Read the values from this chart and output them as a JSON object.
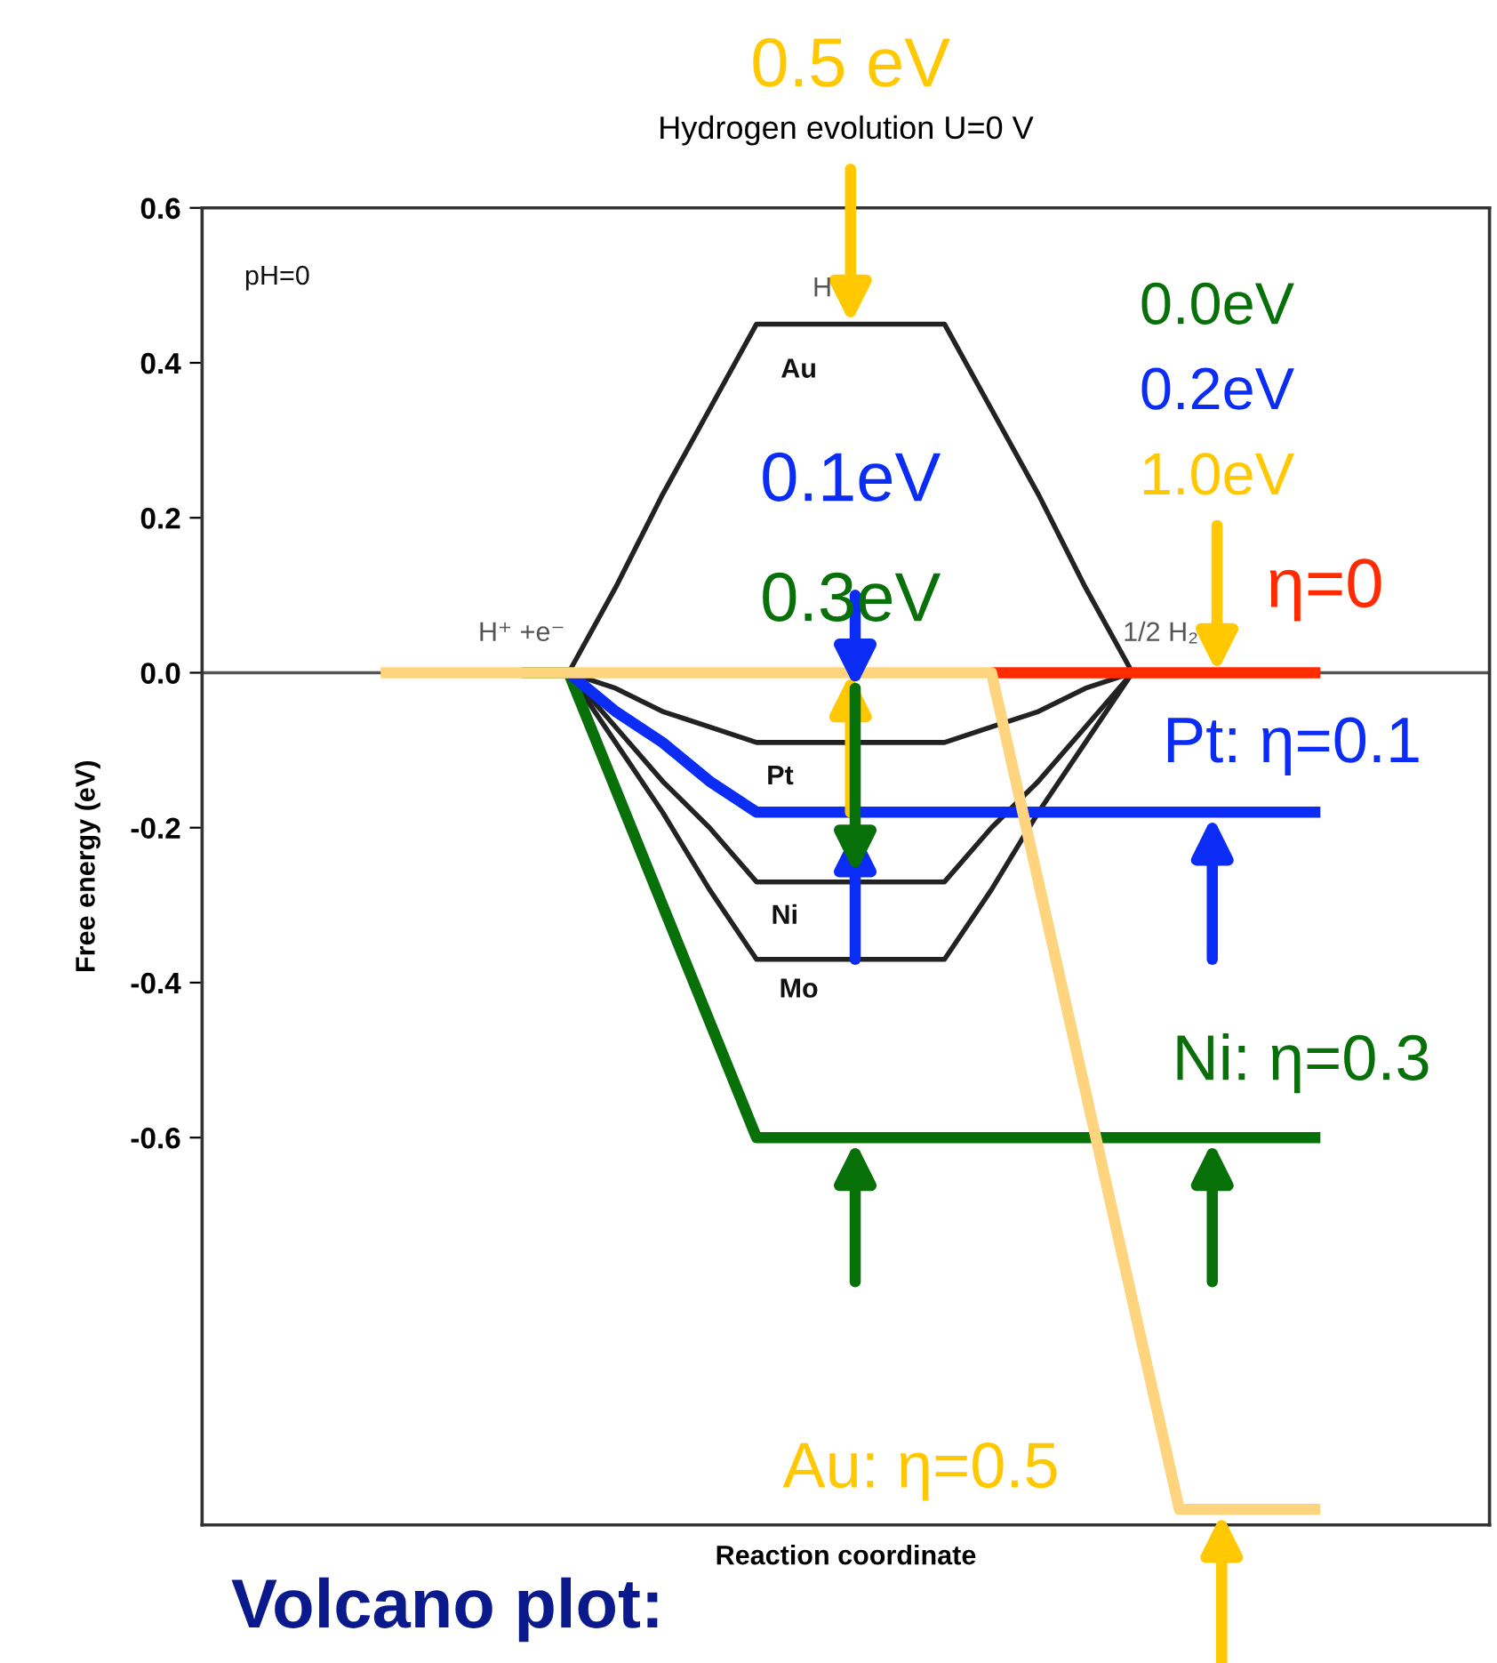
{
  "chart_data": {
    "type": "line",
    "title": "Hydrogen evolution U=0 V",
    "xlabel": "Reaction coordinate",
    "ylabel": "Free energy (eV)",
    "tick_labels": "y",
    "categories": [
      null,
      null,
      null,
      null,
      null,
      null,
      null,
      null,
      null,
      null,
      null,
      null,
      null,
      null,
      null,
      null,
      null,
      null,
      null,
      null,
      null
    ],
    "ylim": [
      -1.1,
      0.6
    ],
    "yticks": [
      -0.6,
      -0.4,
      -0.2,
      {
        "value": 0,
        "label": "0.0"
      },
      0.2,
      0.4,
      0.6
    ],
    "ref_lines": [
      {
        "axis": "y",
        "value": 0,
        "label": null,
        "color": "#555555"
      }
    ],
    "series": [
      {
        "color": "#222222",
        "values": [
          null,
          null,
          null,
          null,
          0,
          0.11,
          0.23,
          0.34,
          0.45,
          0.45,
          0.45,
          0.45,
          0.45,
          0.34,
          0.23,
          0.11,
          0,
          null,
          null,
          null,
          null
        ]
      },
      {
        "color": "#222222",
        "values": [
          null,
          null,
          null,
          null,
          0,
          -0.02,
          -0.05,
          -0.07,
          -0.09,
          -0.09,
          -0.09,
          -0.09,
          -0.09,
          -0.07,
          -0.05,
          -0.02,
          0,
          null,
          null,
          null,
          null
        ]
      },
      {
        "color": "#222222",
        "values": [
          null,
          null,
          null,
          null,
          0,
          -0.07,
          -0.14,
          -0.2,
          -0.27,
          -0.27,
          -0.27,
          -0.27,
          -0.27,
          -0.2,
          -0.14,
          -0.07,
          0,
          null,
          null,
          null,
          null
        ]
      },
      {
        "color": "#222222",
        "values": [
          null,
          null,
          null,
          null,
          0,
          -0.09,
          -0.18,
          -0.28,
          -0.37,
          -0.37,
          -0.37,
          -0.37,
          -0.37,
          -0.28,
          -0.18,
          -0.09,
          0,
          null,
          null,
          null,
          null
        ]
      },
      {
        "color": "#ff2a00",
        "values": [
          null,
          null,
          null,
          null,
          null,
          null,
          null,
          null,
          null,
          null,
          null,
          null,
          null,
          0,
          0,
          0,
          0,
          0,
          0,
          0,
          0
        ]
      },
      {
        "color": "#087008",
        "values": [
          null,
          null,
          null,
          0,
          0,
          -0.15,
          -0.3,
          -0.45,
          -0.6,
          -0.6,
          -0.6,
          -0.6,
          -0.6,
          -0.6,
          -0.6,
          -0.6,
          -0.6,
          -0.6,
          -0.6,
          -0.6,
          -0.6
        ]
      },
      {
        "color": "#0a2cf5",
        "values": [
          null,
          null,
          null,
          null,
          0,
          -0.05,
          -0.09,
          -0.14,
          -0.18,
          -0.18,
          -0.18,
          -0.18,
          -0.18,
          -0.18,
          -0.18,
          -0.18,
          -0.18,
          -0.18,
          -0.18,
          -0.18,
          -0.18
        ]
      },
      {
        "color": "#ffd47f",
        "values": [
          0,
          0,
          0,
          0,
          0,
          0,
          0,
          0,
          0,
          0,
          0,
          0,
          0,
          0,
          -0.27,
          -0.54,
          -0.81,
          -1.08,
          -1.08,
          -1.08,
          -1.08
        ]
      }
    ],
    "annotations": [
      "pH=0",
      "H⁺ +e⁻",
      "H",
      "Au",
      "Pt",
      "Ni",
      "Mo",
      "1/2 H₂",
      "0.5 eV",
      "0.1eV",
      "0.3eV",
      "0.0eV",
      "0.2eV",
      "1.0eV",
      "η=0",
      "Pt: η=0.1",
      "Ni: η=0.3",
      "Au: η=0.5",
      "Volcano plot:"
    ]
  }
}
